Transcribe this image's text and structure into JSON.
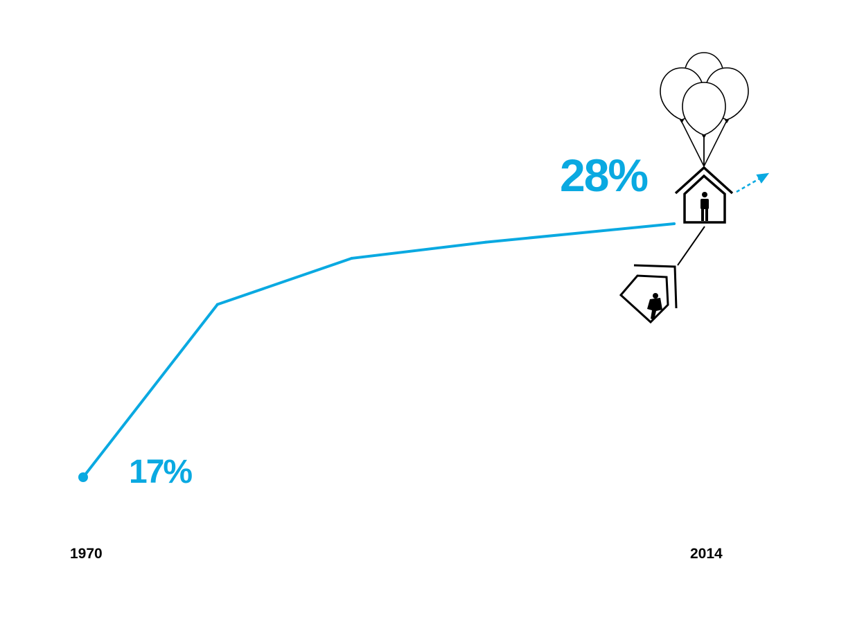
{
  "colors": {
    "accent": "#0aa9e1",
    "ink": "#000000",
    "background": "#ffffff"
  },
  "icons": [
    "balloons-icon",
    "house-icon",
    "person-icon",
    "tumbling-house-icon",
    "falling-person-icon",
    "dashed-arrow-icon"
  ],
  "chart_data": {
    "type": "line",
    "x": [
      1970,
      1980,
      1990,
      2000,
      2014
    ],
    "values": [
      17,
      24.5,
      26.5,
      27.2,
      28
    ],
    "ylim": [
      10,
      40
    ],
    "xlabel": "",
    "ylabel": "",
    "grid": false,
    "tick_labels": [
      "1970",
      "2014"
    ],
    "annotations": {
      "start": "17%",
      "end": "28%"
    },
    "trend_continues": true
  }
}
